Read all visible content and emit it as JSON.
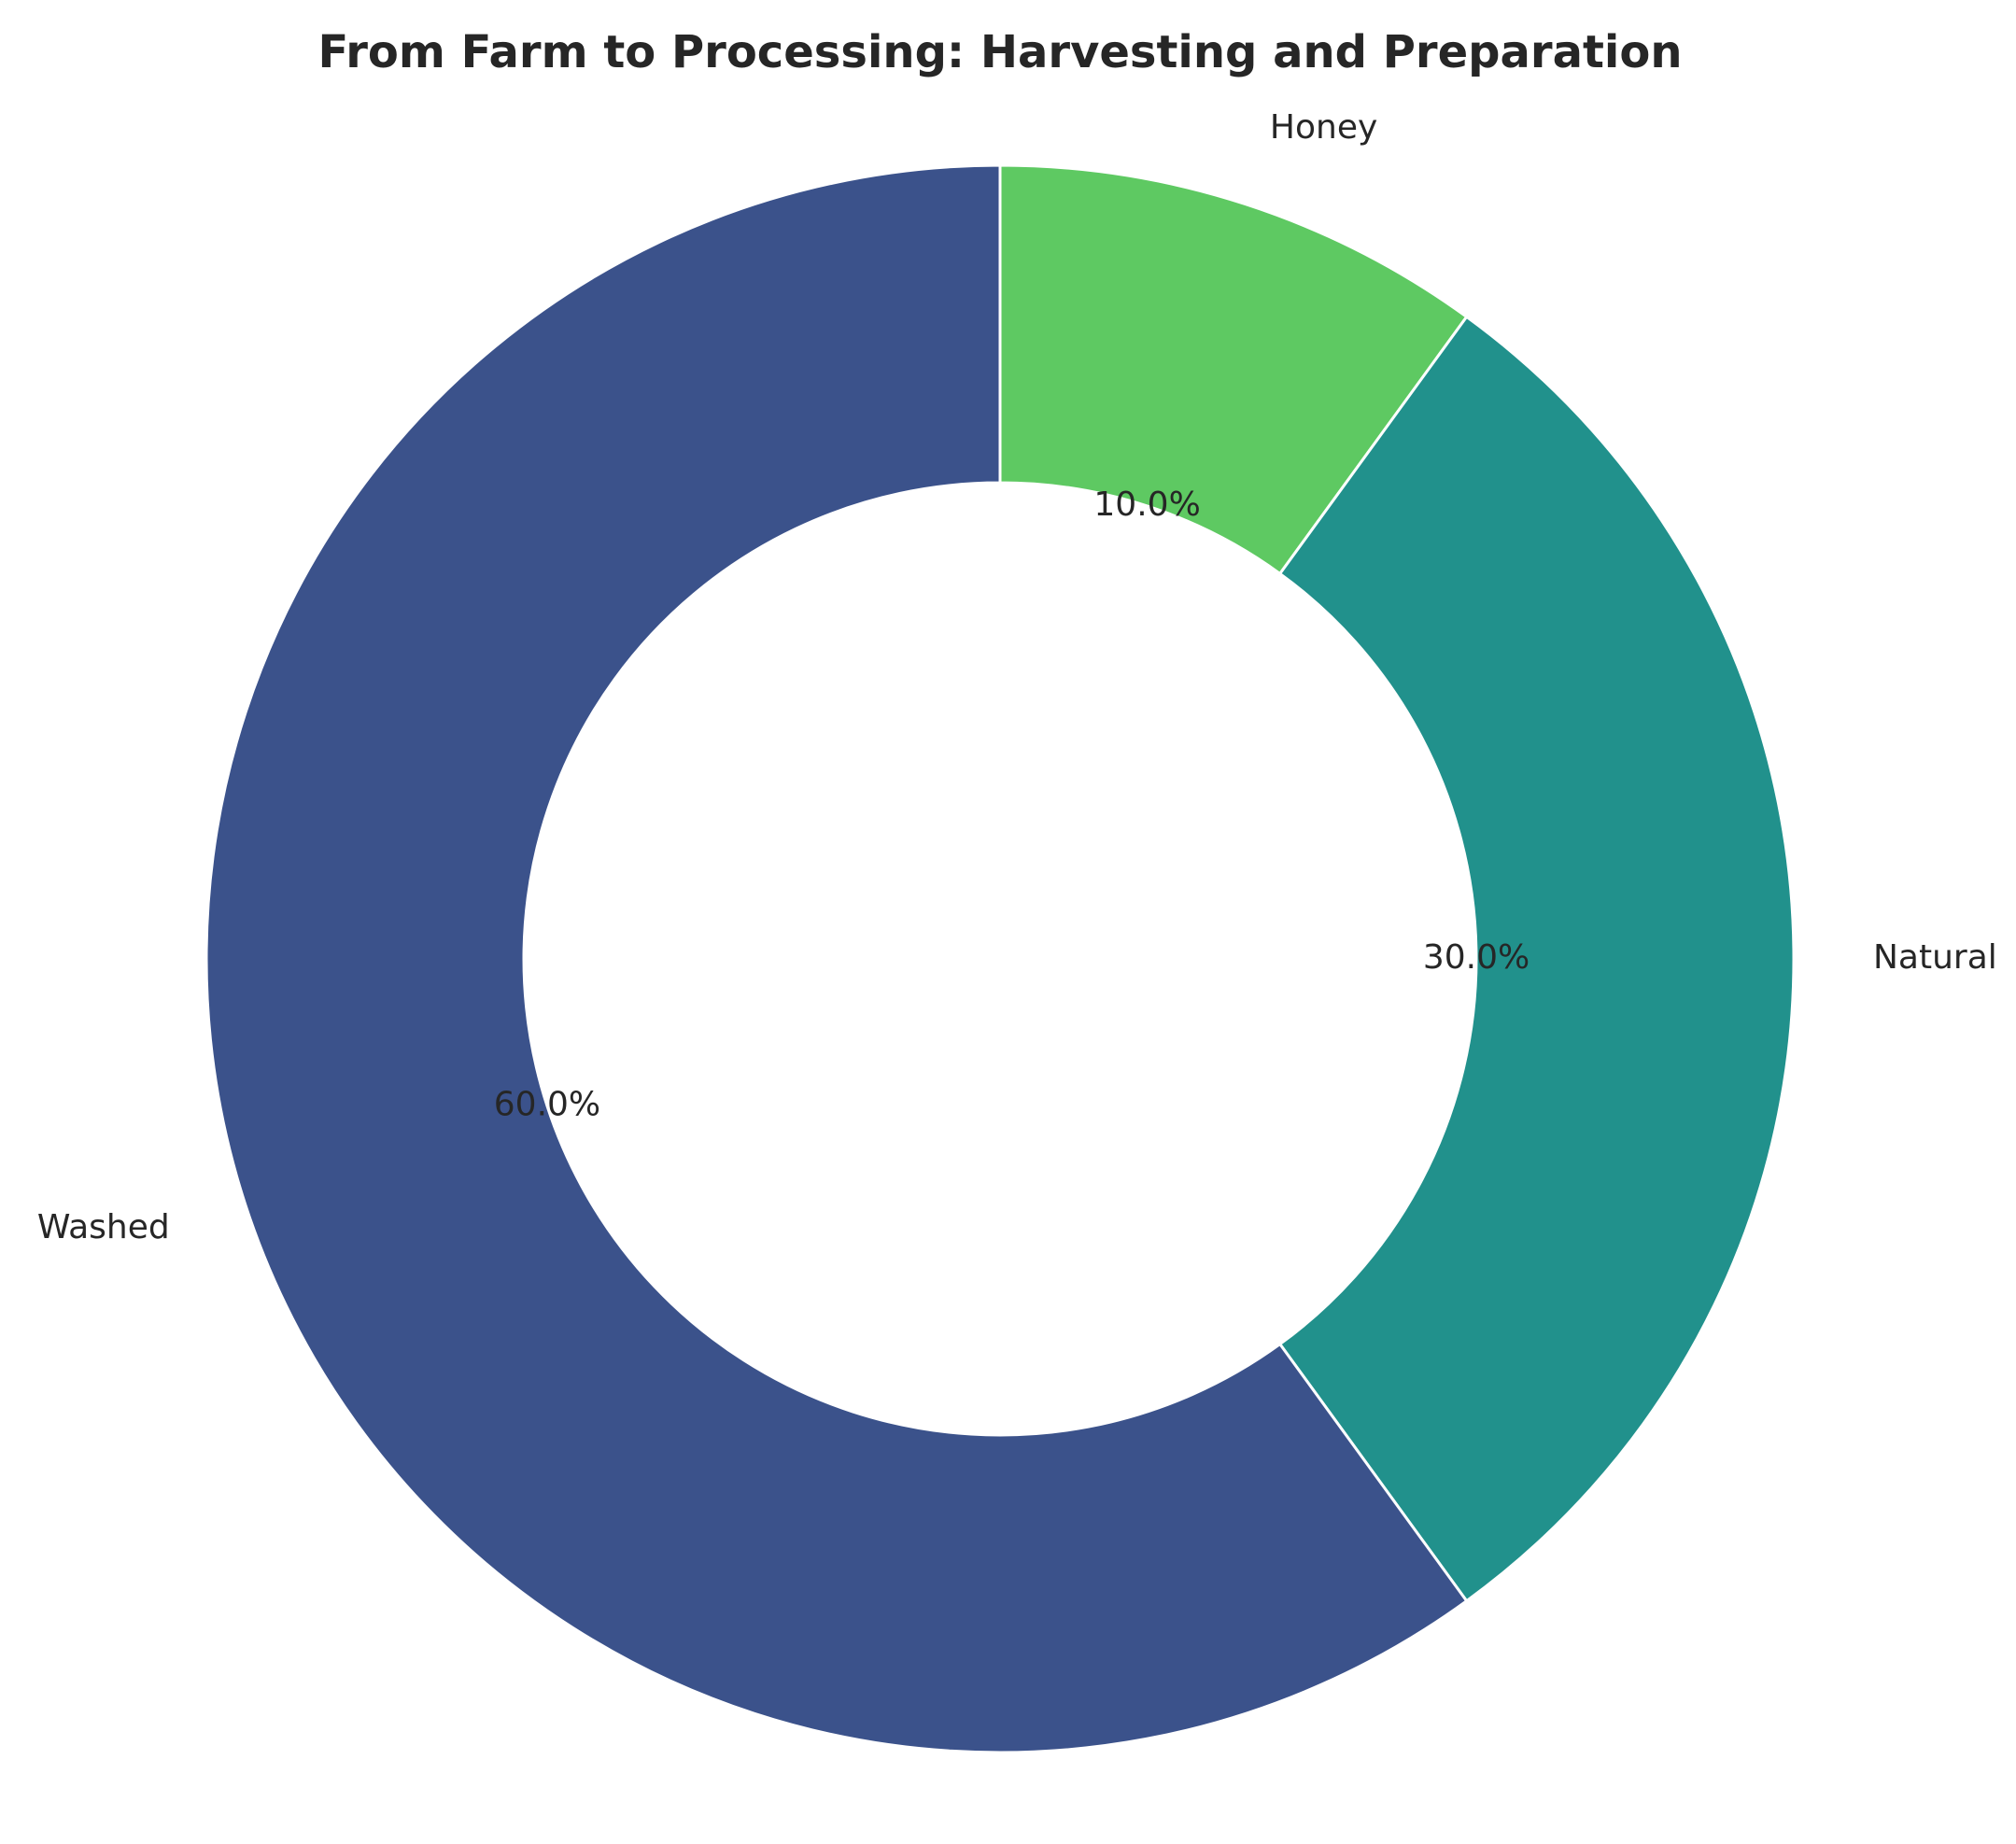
{
  "chart_data": {
    "type": "pie",
    "title": "From Farm to Processing: Harvesting and Preparation",
    "donut": true,
    "start_angle_deg": 90,
    "direction": "clockwise",
    "slices": [
      {
        "label": "Honey",
        "value": 10,
        "pct_label": "10.0%",
        "color": "#5ec962"
      },
      {
        "label": "Natural",
        "value": 30,
        "pct_label": "30.0%",
        "color": "#21918c"
      },
      {
        "label": "Washed",
        "value": 60,
        "pct_label": "60.0%",
        "color": "#3b528b"
      }
    ],
    "edge_color": "#ffffff",
    "legend": "none"
  }
}
